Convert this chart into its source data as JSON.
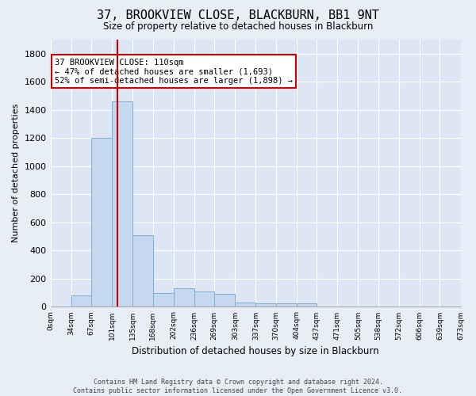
{
  "title": "37, BROOKVIEW CLOSE, BLACKBURN, BB1 9NT",
  "subtitle": "Size of property relative to detached houses in Blackburn",
  "xlabel": "Distribution of detached houses by size in Blackburn",
  "ylabel": "Number of detached properties",
  "footer_line1": "Contains HM Land Registry data © Crown copyright and database right 2024.",
  "footer_line2": "Contains public sector information licensed under the Open Government Licence v3.0.",
  "bin_edges": [
    0,
    34,
    67,
    101,
    135,
    168,
    202,
    236,
    269,
    303,
    337,
    370,
    404,
    437,
    471,
    505,
    538,
    572,
    606,
    639,
    673
  ],
  "bin_labels": [
    "0sqm",
    "34sqm",
    "67sqm",
    "101sqm",
    "135sqm",
    "168sqm",
    "202sqm",
    "236sqm",
    "269sqm",
    "303sqm",
    "337sqm",
    "370sqm",
    "404sqm",
    "437sqm",
    "471sqm",
    "505sqm",
    "538sqm",
    "572sqm",
    "606sqm",
    "639sqm",
    "673sqm"
  ],
  "bar_heights": [
    0,
    80,
    1200,
    1460,
    510,
    100,
    130,
    110,
    90,
    30,
    25,
    25,
    25,
    0,
    0,
    0,
    0,
    0,
    0,
    0
  ],
  "bar_color": "#c5d8f0",
  "bar_edge_color": "#7aafd4",
  "ylim": [
    0,
    1900
  ],
  "yticks": [
    0,
    200,
    400,
    600,
    800,
    1000,
    1200,
    1400,
    1600,
    1800
  ],
  "property_size": 110,
  "vline_color": "#cc0000",
  "annotation_line1": "37 BROOKVIEW CLOSE: 110sqm",
  "annotation_line2": "← 47% of detached houses are smaller (1,693)",
  "annotation_line3": "52% of semi-detached houses are larger (1,898) →",
  "annotation_box_color": "#cc0000",
  "bg_color": "#e8eef8",
  "plot_bg_color": "#dde6f4",
  "grid_color": "#ffffff"
}
